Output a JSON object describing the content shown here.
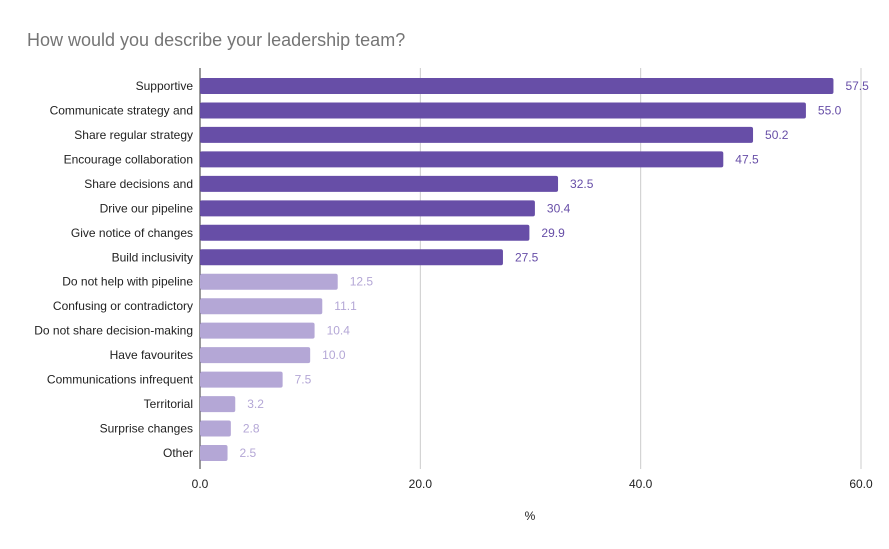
{
  "chart_data": {
    "type": "bar",
    "orientation": "horizontal",
    "title": "How would you describe your leadership team?",
    "xlabel": "%",
    "ylabel": "",
    "xlim": [
      0,
      60
    ],
    "xticks": [
      "0.0",
      "20.0",
      "40.0",
      "60.0"
    ],
    "grid": true,
    "legend": "none",
    "categories": [
      "Supportive",
      "Communicate strategy and",
      "Share regular strategy",
      "Encourage collaboration",
      "Share decisions and",
      "Drive our pipeline",
      "Give notice of changes",
      "Build inclusivity",
      "Do not help with pipeline",
      "Confusing or contradictory",
      "Do not share decision-making",
      "Have favourites",
      "Communications infrequent",
      "Territorial",
      "Surprise changes",
      "Other"
    ],
    "values": [
      57.5,
      55.0,
      50.2,
      47.5,
      32.5,
      30.4,
      29.9,
      27.5,
      12.5,
      11.1,
      10.4,
      10.0,
      7.5,
      3.2,
      2.8,
      2.5
    ],
    "value_labels": [
      "57.5",
      "55.0",
      "50.2",
      "47.5",
      "32.5",
      "30.4",
      "29.9",
      "27.5",
      "12.5",
      "11.1",
      "10.4",
      "10.0",
      "7.5",
      "3.2",
      "2.8",
      "2.5"
    ],
    "bar_colors": [
      "#674ea7",
      "#674ea7",
      "#674ea7",
      "#674ea7",
      "#674ea7",
      "#674ea7",
      "#674ea7",
      "#674ea7",
      "#b4a7d6",
      "#b4a7d6",
      "#b4a7d6",
      "#b4a7d6",
      "#b4a7d6",
      "#b4a7d6",
      "#b4a7d6",
      "#b4a7d6"
    ]
  }
}
